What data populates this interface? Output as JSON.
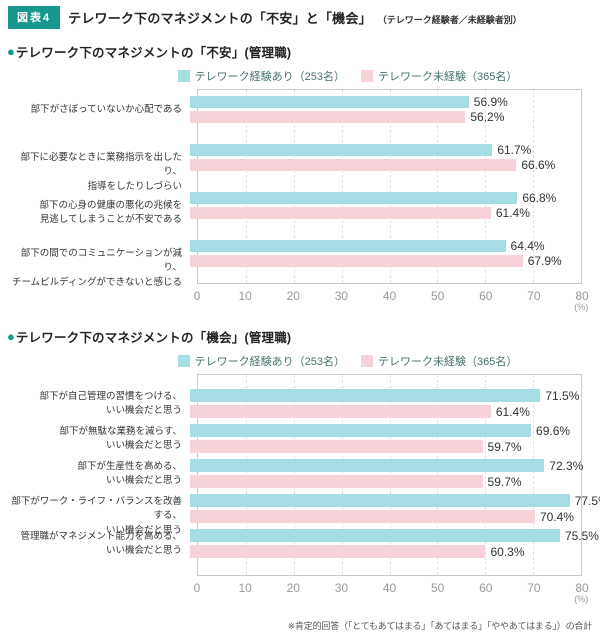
{
  "meta": {
    "bullet": "●"
  },
  "header": {
    "badge": "図表4",
    "title": "テレワーク下のマネジメントの「不安」と「機会」",
    "subtitle": "（テレワーク経験者／未経験者別）"
  },
  "colors": {
    "accent_teal": "#17978d",
    "bar_experienced": "#a5dde2",
    "bar_inexperienced": "#f8d2d9",
    "plot_border": "#c9c9c9",
    "gridline": "#e0e0e0",
    "legend_text": "#4a736e"
  },
  "footnote": "※肯定的回答（「とてもあてはまる」「あてはまる」「ややあてはまる」）の合計",
  "chart_data": [
    {
      "type": "bar",
      "orientation": "horizontal",
      "title": "テレワーク下のマネジメントの「不安」(管理職)",
      "xlim": [
        0,
        80
      ],
      "x_ticks": [
        0,
        10,
        20,
        30,
        40,
        50,
        60,
        70,
        80
      ],
      "x_unit_label": "(%)",
      "grid": "dashed-vertical",
      "legend_position": "top-center",
      "categories": [
        "部下がさぼっていないか心配である",
        "部下に必要なときに業務指示を出したり、\n指導をしたりしづらい",
        "部下の心身の健康の悪化の兆候を\n見逃してしまうことが不安である",
        "部下の間でのコミュニケーションが減り、\nチームビルディングができないと感じる"
      ],
      "series": [
        {
          "name": "テレワーク経験あり（253名）",
          "color": "#a5dde2",
          "values": [
            56.9,
            61.7,
            66.8,
            64.4
          ]
        },
        {
          "name": "テレワーク未経験（365名）",
          "color": "#f8d2d9",
          "values": [
            56.2,
            66.6,
            61.4,
            67.9
          ]
        }
      ]
    },
    {
      "type": "bar",
      "orientation": "horizontal",
      "title": "テレワーク下のマネジメントの「機会」(管理職)",
      "xlim": [
        0,
        80
      ],
      "x_ticks": [
        0,
        10,
        20,
        30,
        40,
        50,
        60,
        70,
        80
      ],
      "x_unit_label": "(%)",
      "grid": "dashed-vertical",
      "legend_position": "top-center",
      "categories": [
        "部下が自己管理の習慣をつける、\nいい機会だと思う",
        "部下が無駄な業務を減らす、\nいい機会だと思う",
        "部下が生産性を高める、\nいい機会だと思う",
        "部下がワーク・ライフ・バランスを改善する、\nいい機会だと思う",
        "管理職がマネジメント能力を高める、\nいい機会だと思う"
      ],
      "series": [
        {
          "name": "テレワーク経験あり（253名）",
          "color": "#a5dde2",
          "values": [
            71.5,
            69.6,
            72.3,
            77.5,
            75.5
          ]
        },
        {
          "name": "テレワーク未経験（365名）",
          "color": "#f8d2d9",
          "values": [
            61.4,
            59.7,
            59.7,
            70.4,
            60.3
          ]
        }
      ]
    }
  ]
}
